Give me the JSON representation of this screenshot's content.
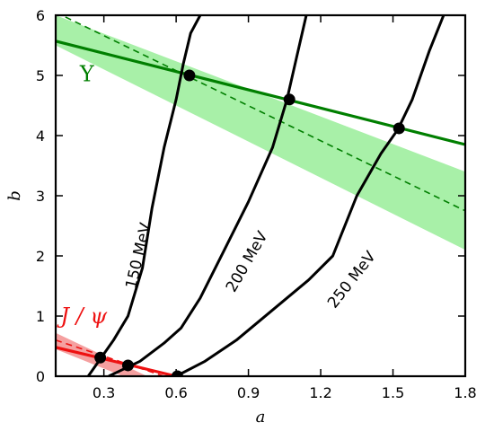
{
  "chart_data": {
    "type": "line",
    "title": "",
    "xlabel": "a",
    "ylabel": "b",
    "xlim": [
      0.1,
      1.8
    ],
    "ylim": [
      0,
      6
    ],
    "grid": false,
    "x_ticks": [
      0.3,
      0.6,
      0.9,
      1.2,
      1.5,
      1.8
    ],
    "y_ticks": [
      0,
      1,
      2,
      3,
      4,
      5,
      6
    ],
    "x_tick_labels": [
      "0.3",
      "0.6",
      "0.9",
      "1.2",
      "1.5",
      "1.8"
    ],
    "y_tick_labels": [
      "0",
      "1",
      "2",
      "3",
      "4",
      "5",
      "6"
    ],
    "temperature_curves": [
      {
        "name": "150 MeV",
        "label_at": [
          0.445,
          2.0
        ],
        "label_angle": -77,
        "points": [
          [
            0.235,
            0
          ],
          [
            0.34,
            0.6
          ],
          [
            0.4,
            1.0
          ],
          [
            0.46,
            1.8
          ],
          [
            0.5,
            2.8
          ],
          [
            0.55,
            3.8
          ],
          [
            0.6,
            4.6
          ],
          [
            0.63,
            5.2
          ],
          [
            0.66,
            5.7
          ],
          [
            0.7,
            6.0
          ]
        ]
      },
      {
        "name": "200 MeV",
        "label_at": [
          0.895,
          1.9
        ],
        "label_angle": -60,
        "points": [
          [
            0.32,
            0
          ],
          [
            0.45,
            0.25
          ],
          [
            0.55,
            0.55
          ],
          [
            0.62,
            0.8
          ],
          [
            0.7,
            1.3
          ],
          [
            0.8,
            2.1
          ],
          [
            0.9,
            2.9
          ],
          [
            1.0,
            3.8
          ],
          [
            1.06,
            4.6
          ],
          [
            1.1,
            5.3
          ],
          [
            1.14,
            6.0
          ]
        ]
      },
      {
        "name": "250 MeV",
        "label_at": [
          1.33,
          1.6
        ],
        "label_angle": -52,
        "points": [
          [
            0.6,
            0
          ],
          [
            0.72,
            0.25
          ],
          [
            0.85,
            0.6
          ],
          [
            1.0,
            1.1
          ],
          [
            1.15,
            1.6
          ],
          [
            1.25,
            2.0
          ],
          [
            1.35,
            3.0
          ],
          [
            1.45,
            3.7
          ],
          [
            1.52,
            4.1
          ],
          [
            1.58,
            4.6
          ],
          [
            1.65,
            5.4
          ],
          [
            1.71,
            6.0
          ]
        ]
      }
    ],
    "systems": [
      {
        "name": "Υ",
        "color": "#007f00",
        "band_color": "#a8f0a8",
        "label_at": [
          0.2,
          4.9
        ],
        "line": [
          [
            0.1,
            5.57
          ],
          [
            1.8,
            3.85
          ]
        ],
        "dashed": [
          [
            0.1,
            6.05
          ],
          [
            1.8,
            2.75
          ]
        ],
        "band_upper": [
          [
            0.1,
            6.0
          ],
          [
            1.8,
            3.4
          ]
        ],
        "band_lower": [
          [
            0.1,
            5.5
          ],
          [
            1.8,
            2.1
          ]
        ],
        "intersections": [
          [
            0.655,
            5.0
          ],
          [
            1.07,
            4.6
          ],
          [
            1.525,
            4.12
          ]
        ]
      },
      {
        "name": "J / ψ",
        "color": "#ee1111",
        "band_color": "#f5a0a0",
        "label_at": [
          0.12,
          0.88
        ],
        "line": [
          [
            0.1,
            0.48
          ],
          [
            0.6,
            0.0
          ]
        ],
        "dashed": [
          [
            0.1,
            0.6
          ],
          [
            0.55,
            0.0
          ]
        ],
        "band_upper": [
          [
            0.1,
            0.72
          ],
          [
            0.48,
            0.0
          ]
        ],
        "band_lower": [
          [
            0.1,
            0.45
          ],
          [
            0.38,
            0.0
          ]
        ],
        "intersections": [
          [
            0.285,
            0.31
          ],
          [
            0.4,
            0.18
          ],
          [
            0.605,
            0.0
          ]
        ]
      }
    ]
  }
}
